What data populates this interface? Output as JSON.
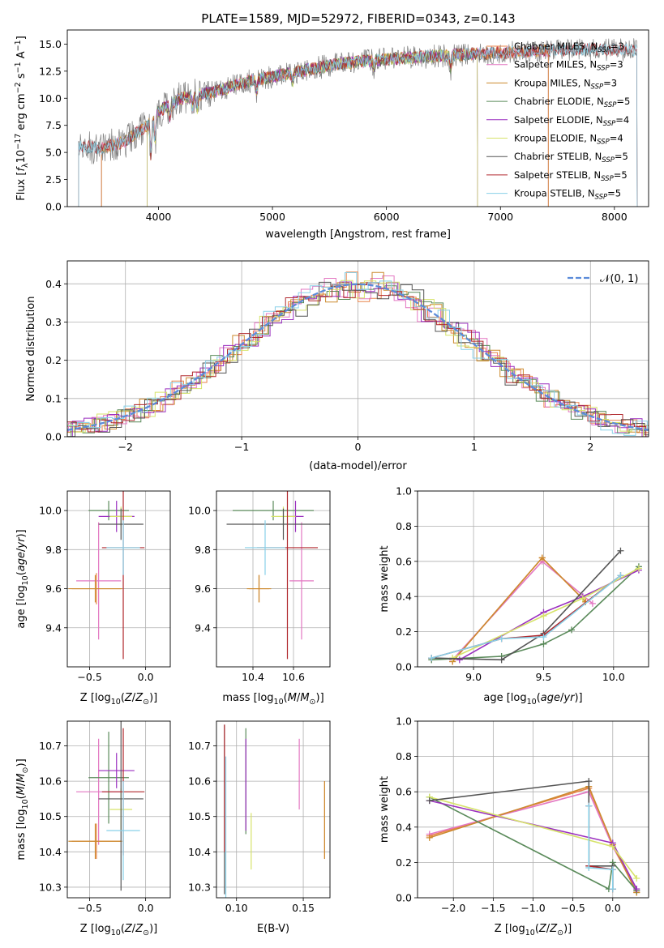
{
  "figure_title": "PLATE=1589, MJD=52972, FIBERID=0343, z=0.143",
  "colors": {
    "chabrier_miles": "#e8834a",
    "salpeter_miles": "#e377c2",
    "kroupa_miles": "#cc8a2e",
    "chabrier_elodie": "#5a8a5a",
    "salpeter_elodie": "#9a2fbf",
    "kroupa_elodie": "#d6e36a",
    "chabrier_stelib": "#555555",
    "salpeter_stelib": "#b0282d",
    "kroupa_stelib": "#88d0e8",
    "data": "#808080",
    "normal": "#5b8bd9"
  },
  "chart_data": [
    {
      "id": "spectrum",
      "type": "line",
      "xlabel": "wavelength [Angstrom, rest frame]",
      "ylabel": "Flux [f_λ10^-17 erg cm^-2 s^-1 A^-1]",
      "xlim": [
        3200,
        8300
      ],
      "ylim": [
        0,
        16.3
      ],
      "xticks": [
        4000,
        5000,
        6000,
        7000,
        8000
      ],
      "yticks": [
        0.0,
        2.5,
        5.0,
        7.5,
        10.0,
        12.5,
        15.0
      ],
      "ytick_labels": [
        "0.0",
        "2.5",
        "5.0",
        "7.5",
        "10.0",
        "12.5",
        "15.0"
      ],
      "grid": false,
      "legend_placement": "top-right",
      "continuum": {
        "x": [
          3300,
          3500,
          3700,
          3900,
          4000,
          4200,
          4500,
          4800,
          5000,
          5300,
          5600,
          6000,
          6300,
          6600,
          7000,
          7400,
          7800,
          8200
        ],
        "y": [
          5.6,
          5.4,
          6.0,
          7.5,
          8.8,
          10.0,
          10.6,
          11.6,
          12.0,
          12.6,
          13.2,
          13.6,
          13.8,
          14.0,
          14.2,
          14.4,
          14.5,
          14.5
        ]
      },
      "series": [
        {
          "name": "Chabrier MILES, N_SSP=3",
          "color_key": "chabrier_miles",
          "xmin": 3500,
          "xmax": 7420
        },
        {
          "name": "Salpeter MILES, N_SSP=3",
          "color_key": "salpeter_miles",
          "xmin": 3500,
          "xmax": 7420
        },
        {
          "name": "Kroupa MILES, N_SSP=3",
          "color_key": "kroupa_miles",
          "xmin": 3500,
          "xmax": 7420
        },
        {
          "name": "Chabrier ELODIE, N_SSP=5",
          "color_key": "chabrier_elodie",
          "xmin": 3900,
          "xmax": 6800
        },
        {
          "name": "Salpeter ELODIE, N_SSP=4",
          "color_key": "salpeter_elodie",
          "xmin": 3900,
          "xmax": 6800
        },
        {
          "name": "Kroupa ELODIE, N_SSP=4",
          "color_key": "kroupa_elodie",
          "xmin": 3900,
          "xmax": 6800
        },
        {
          "name": "Chabrier STELIB, N_SSP=5",
          "color_key": "chabrier_stelib",
          "xmin": 3300,
          "xmax": 8200
        },
        {
          "name": "Salpeter STELIB, N_SSP=5",
          "color_key": "salpeter_stelib",
          "xmin": 3300,
          "xmax": 8200
        },
        {
          "name": "Kroupa STELIB, N_SSP=5",
          "color_key": "kroupa_stelib",
          "xmin": 3300,
          "xmax": 8200
        }
      ]
    },
    {
      "id": "residuals",
      "type": "bar",
      "xlabel": "(data-model)/error",
      "ylabel": "Normed distribution",
      "xlim": [
        -2.5,
        2.5
      ],
      "ylim": [
        0,
        0.46
      ],
      "xticks": [
        -2,
        -1,
        0,
        1,
        2
      ],
      "xtick_labels": [
        "−2",
        "−1",
        "0",
        "1",
        "2"
      ],
      "yticks": [
        0.0,
        0.1,
        0.2,
        0.3,
        0.4
      ],
      "ytick_labels": [
        "0.0",
        "0.1",
        "0.2",
        "0.3",
        "0.4"
      ],
      "grid": true,
      "legend_placement": "top-right",
      "legend_label": "𝒩(0, 1)",
      "histogram_bin_width": 0.1,
      "normal_curve": {
        "mean": 0,
        "sigma": 1
      }
    },
    {
      "id": "z_age",
      "type": "scatter",
      "xlabel": "Z [log10(Z/Z⊙)]",
      "ylabel": "age  [log10(age/yr)]",
      "xlim": [
        -0.7,
        0.22
      ],
      "ylim": [
        9.2,
        10.1
      ],
      "xticks": [
        -0.5,
        0.0
      ],
      "xtick_labels": [
        "−0.5",
        "0.0"
      ],
      "yticks": [
        9.4,
        9.6,
        9.8,
        10.0
      ],
      "ytick_labels": [
        "9.4",
        "9.6",
        "9.8",
        "10.0"
      ],
      "grid": true,
      "points": [
        {
          "color_key": "chabrier_miles",
          "x": -0.44,
          "xerr": 0.22,
          "y": 9.6,
          "yerr": 0.08
        },
        {
          "color_key": "salpeter_miles",
          "x": -0.42,
          "xerr": 0.2,
          "y": 9.64,
          "yerr": 0.3
        },
        {
          "color_key": "kroupa_miles",
          "x": -0.45,
          "xerr": 0.24,
          "y": 9.6,
          "yerr": 0.07
        },
        {
          "color_key": "chabrier_elodie",
          "x": -0.33,
          "xerr": 0.18,
          "y": 10.0,
          "yerr": 0.05
        },
        {
          "color_key": "salpeter_elodie",
          "x": -0.26,
          "xerr": 0.16,
          "y": 9.97,
          "yerr": 0.08
        },
        {
          "color_key": "kroupa_elodie",
          "x": -0.22,
          "xerr": 0.1,
          "y": 9.97,
          "yerr": 0.05
        },
        {
          "color_key": "chabrier_stelib",
          "x": -0.22,
          "xerr": 0.2,
          "y": 9.93,
          "yerr": 0.08
        },
        {
          "color_key": "salpeter_stelib",
          "x": -0.2,
          "xerr": 0.19,
          "y": 9.81,
          "yerr": 0.57
        },
        {
          "color_key": "kroupa_stelib",
          "x": -0.2,
          "xerr": 0.15,
          "y": 9.81,
          "yerr": 0.14
        }
      ]
    },
    {
      "id": "mass_age",
      "type": "scatter",
      "xlabel": "mass [log10(M/M⊙)]",
      "ylabel": "",
      "xlim": [
        10.22,
        10.78
      ],
      "ylim": [
        9.2,
        10.1
      ],
      "xticks": [
        10.4,
        10.6
      ],
      "xtick_labels": [
        "10.4",
        "10.6"
      ],
      "yticks": [
        9.4,
        9.6,
        9.8,
        10.0
      ],
      "ytick_labels": [
        "9.4",
        "9.6",
        "9.8",
        "10.0"
      ],
      "grid": true,
      "points": [
        {
          "color_key": "chabrier_miles",
          "x": 10.43,
          "xerr": 0.05,
          "y": 9.6,
          "yerr": 0.07
        },
        {
          "color_key": "salpeter_miles",
          "x": 10.64,
          "xerr": 0.06,
          "y": 9.64,
          "yerr": 0.3
        },
        {
          "color_key": "kroupa_miles",
          "x": 10.43,
          "xerr": 0.06,
          "y": 9.6,
          "yerr": 0.07
        },
        {
          "color_key": "chabrier_elodie",
          "x": 10.5,
          "xerr": 0.2,
          "y": 10.0,
          "yerr": 0.05
        },
        {
          "color_key": "salpeter_elodie",
          "x": 10.61,
          "xerr": 0.04,
          "y": 9.97,
          "yerr": 0.08
        },
        {
          "color_key": "kroupa_elodie",
          "x": 10.55,
          "xerr": 0.06,
          "y": 9.97,
          "yerr": 0.05
        },
        {
          "color_key": "chabrier_stelib",
          "x": 10.55,
          "xerr": 0.28,
          "y": 9.93,
          "yerr": 0.08
        },
        {
          "color_key": "salpeter_stelib",
          "x": 10.57,
          "xerr": 0.15,
          "y": 9.81,
          "yerr": 0.57
        },
        {
          "color_key": "kroupa_stelib",
          "x": 10.46,
          "xerr": 0.1,
          "y": 9.81,
          "yerr": 0.14
        }
      ]
    },
    {
      "id": "age_weight",
      "type": "line",
      "xlabel": "age  [log10(age/yr)]",
      "ylabel": "mass weight",
      "xlim": [
        8.6,
        10.25
      ],
      "ylim": [
        0,
        1.0
      ],
      "xticks": [
        9.0,
        9.5,
        10.0
      ],
      "xtick_labels": [
        "9.0",
        "9.5",
        "10.0"
      ],
      "yticks": [
        0.0,
        0.2,
        0.4,
        0.6,
        0.8,
        1.0
      ],
      "ytick_labels": [
        "0.0",
        "0.2",
        "0.4",
        "0.6",
        "0.8",
        "1.0"
      ],
      "grid": true,
      "series": [
        {
          "color_key": "chabrier_miles",
          "x": [
            8.85,
            9.49,
            9.8
          ],
          "y": [
            0.03,
            0.62,
            0.37
          ]
        },
        {
          "color_key": "salpeter_miles",
          "x": [
            8.85,
            9.49,
            9.85
          ],
          "y": [
            0.04,
            0.6,
            0.36
          ]
        },
        {
          "color_key": "kroupa_miles",
          "x": [
            8.85,
            9.49,
            9.8
          ],
          "y": [
            0.03,
            0.62,
            0.37
          ]
        },
        {
          "color_key": "chabrier_elodie",
          "x": [
            8.7,
            9.2,
            9.5,
            9.7,
            10.18
          ],
          "y": [
            0.04,
            0.06,
            0.13,
            0.21,
            0.57
          ]
        },
        {
          "color_key": "salpeter_elodie",
          "x": [
            8.9,
            9.5,
            9.78,
            10.18
          ],
          "y": [
            0.04,
            0.31,
            0.4,
            0.55
          ]
        },
        {
          "color_key": "kroupa_elodie",
          "x": [
            8.85,
            9.5,
            9.78,
            10.18
          ],
          "y": [
            0.05,
            0.29,
            0.39,
            0.56
          ]
        },
        {
          "color_key": "chabrier_stelib",
          "x": [
            8.7,
            9.2,
            9.5,
            10.05
          ],
          "y": [
            0.05,
            0.04,
            0.19,
            0.66
          ]
        },
        {
          "color_key": "salpeter_stelib",
          "x": [
            8.7,
            9.2,
            9.5,
            10.05
          ],
          "y": [
            0.05,
            0.16,
            0.18,
            0.52
          ]
        },
        {
          "color_key": "kroupa_stelib",
          "x": [
            8.7,
            9.2,
            9.5,
            10.05
          ],
          "y": [
            0.05,
            0.16,
            0.17,
            0.52
          ]
        }
      ]
    },
    {
      "id": "z_mass",
      "type": "scatter",
      "xlabel": "Z [log10(Z/Z⊙)]",
      "ylabel": "mass [log10(M/M⊙)]",
      "xlim": [
        -0.7,
        0.22
      ],
      "ylim": [
        10.27,
        10.77
      ],
      "xticks": [
        -0.5,
        0.0
      ],
      "xtick_labels": [
        "−0.5",
        "0.0"
      ],
      "yticks": [
        10.3,
        10.4,
        10.5,
        10.6,
        10.7
      ],
      "ytick_labels": [
        "10.3",
        "10.4",
        "10.5",
        "10.6",
        "10.7"
      ],
      "grid": true,
      "points": [
        {
          "color_key": "chabrier_miles",
          "x": -0.44,
          "xerr": 0.22,
          "y": 10.43,
          "yerr": 0.05
        },
        {
          "color_key": "salpeter_miles",
          "x": -0.42,
          "xerr": 0.2,
          "y": 10.57,
          "yerr": 0.15
        },
        {
          "color_key": "kroupa_miles",
          "x": -0.45,
          "xerr": 0.24,
          "y": 10.43,
          "yerr": 0.05
        },
        {
          "color_key": "chabrier_elodie",
          "x": -0.33,
          "xerr": 0.18,
          "y": 10.61,
          "yerr": 0.13
        },
        {
          "color_key": "salpeter_elodie",
          "x": -0.26,
          "xerr": 0.16,
          "y": 10.63,
          "yerr": 0.05
        },
        {
          "color_key": "kroupa_elodie",
          "x": -0.22,
          "xerr": 0.1,
          "y": 10.52,
          "yerr": 0.06
        },
        {
          "color_key": "chabrier_stelib",
          "x": -0.22,
          "xerr": 0.2,
          "y": 10.55,
          "yerr": 0.26
        },
        {
          "color_key": "salpeter_stelib",
          "x": -0.2,
          "xerr": 0.19,
          "y": 10.57,
          "yerr": 0.18
        },
        {
          "color_key": "kroupa_stelib",
          "x": -0.2,
          "xerr": 0.15,
          "y": 10.46,
          "yerr": 0.14
        }
      ]
    },
    {
      "id": "ebv_mass",
      "type": "scatter",
      "xlabel": "E(B-V)",
      "ylabel": "",
      "xlim": [
        0.085,
        0.17
      ],
      "ylim": [
        10.27,
        10.77
      ],
      "xticks": [
        0.1,
        0.15
      ],
      "xtick_labels": [
        "0.10",
        "0.15"
      ],
      "yticks": [
        10.3,
        10.4,
        10.5,
        10.6,
        10.7
      ],
      "ytick_labels": [
        "10.3",
        "10.4",
        "10.5",
        "10.6",
        "10.7"
      ],
      "grid": true,
      "points": [
        {
          "color_key": "chabrier_miles",
          "x": 0.166,
          "y": 10.49,
          "yerr": 0.11
        },
        {
          "color_key": "salpeter_miles",
          "x": 0.147,
          "y": 10.62,
          "yerr": 0.1
        },
        {
          "color_key": "kroupa_miles",
          "x": 0.166,
          "y": 10.49,
          "yerr": 0.11
        },
        {
          "color_key": "chabrier_elodie",
          "x": 0.107,
          "y": 10.6,
          "yerr": 0.15
        },
        {
          "color_key": "salpeter_elodie",
          "x": 0.107,
          "y": 10.59,
          "yerr": 0.13
        },
        {
          "color_key": "kroupa_elodie",
          "x": 0.111,
          "y": 10.43,
          "yerr": 0.08
        },
        {
          "color_key": "chabrier_stelib",
          "x": 0.091,
          "y": 10.52,
          "yerr": 0.24
        },
        {
          "color_key": "salpeter_stelib",
          "x": 0.091,
          "y": 10.58,
          "yerr": 0.18
        },
        {
          "color_key": "kroupa_stelib",
          "x": 0.092,
          "y": 10.47,
          "yerr": 0.2
        }
      ]
    },
    {
      "id": "z_weight",
      "type": "line",
      "xlabel": "Z [log10(Z/Z⊙)]",
      "ylabel": "mass weight",
      "xlim": [
        -2.45,
        0.45
      ],
      "ylim": [
        0,
        1.0
      ],
      "xticks": [
        -2.0,
        -1.5,
        -1.0,
        -0.5,
        0.0
      ],
      "xtick_labels": [
        "−2.0",
        "−1.5",
        "−1.0",
        "−0.5",
        "0.0"
      ],
      "yticks": [
        0.0,
        0.2,
        0.4,
        0.6,
        0.8,
        1.0
      ],
      "ytick_labels": [
        "0.0",
        "0.2",
        "0.4",
        "0.6",
        "0.8",
        "1.0"
      ],
      "grid": true,
      "series": [
        {
          "color_key": "chabrier_miles",
          "x": [
            -2.3,
            -0.3,
            0.0,
            0.3
          ],
          "y": [
            0.35,
            0.62,
            0.3,
            0.03
          ]
        },
        {
          "color_key": "salpeter_miles",
          "x": [
            -2.3,
            -0.3,
            0.0,
            0.3
          ],
          "y": [
            0.36,
            0.6,
            0.29,
            0.04
          ]
        },
        {
          "color_key": "kroupa_miles",
          "x": [
            -2.3,
            -0.3,
            0.0,
            0.3
          ],
          "y": [
            0.34,
            0.63,
            0.3,
            0.03
          ]
        },
        {
          "color_key": "chabrier_elodie",
          "x": [
            -2.3,
            -0.05,
            0.0,
            0.3
          ],
          "y": [
            0.57,
            0.05,
            0.2,
            0.04
          ]
        },
        {
          "color_key": "salpeter_elodie",
          "x": [
            -2.3,
            0.0,
            0.3
          ],
          "y": [
            0.55,
            0.31,
            0.05
          ]
        },
        {
          "color_key": "kroupa_elodie",
          "x": [
            -2.3,
            0.0,
            0.3
          ],
          "y": [
            0.57,
            0.29,
            0.11
          ]
        },
        {
          "color_key": "chabrier_stelib",
          "x": [
            -2.3,
            -0.3,
            -0.3,
            0.0,
            0.0
          ],
          "y": [
            0.55,
            0.66,
            0.18,
            0.18,
            0.05
          ]
        },
        {
          "color_key": "salpeter_stelib",
          "x": [
            -0.3,
            -0.3,
            0.0,
            0.0
          ],
          "y": [
            0.52,
            0.18,
            0.16,
            0.05
          ]
        },
        {
          "color_key": "kroupa_stelib",
          "x": [
            -0.3,
            -0.3,
            0.0,
            0.0
          ],
          "y": [
            0.52,
            0.17,
            0.16,
            0.05
          ]
        }
      ]
    }
  ]
}
